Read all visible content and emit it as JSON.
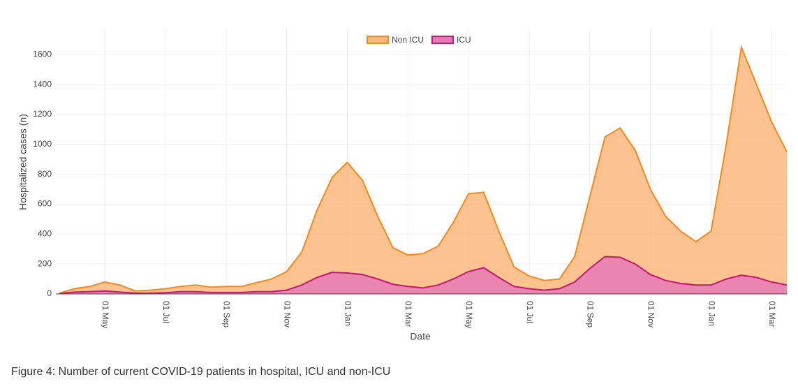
{
  "chart_data": {
    "type": "area",
    "xlabel": "Date",
    "ylabel": "Hospitalized cases (n)",
    "caption": "Figure 4: Number of current COVID-19 patients in hospital, ICU and non-ICU",
    "categories": [
      null,
      null,
      null,
      "01 May",
      null,
      null,
      null,
      "01 Jul",
      null,
      null,
      null,
      "01 Sep",
      null,
      null,
      null,
      "01 Nov",
      null,
      null,
      null,
      "01 Jan",
      null,
      null,
      null,
      "01 Mar",
      null,
      null,
      null,
      "01 May",
      null,
      null,
      null,
      "01 Jul",
      null,
      null,
      null,
      "01 Sep",
      null,
      null,
      null,
      "01 Nov",
      null,
      null,
      null,
      "01 Jan",
      null,
      null,
      null,
      "01 Mar",
      null
    ],
    "series": [
      {
        "name": "Non ICU",
        "color": "#f5891f",
        "fill": "#fbb87c",
        "values": [
          5,
          35,
          50,
          80,
          60,
          20,
          25,
          35,
          50,
          60,
          45,
          50,
          50,
          75,
          100,
          150,
          280,
          560,
          780,
          880,
          760,
          520,
          310,
          260,
          270,
          320,
          480,
          670,
          680,
          420,
          180,
          120,
          90,
          100,
          250,
          650,
          1050,
          1110,
          960,
          700,
          520,
          420,
          350,
          420,
          1000,
          1650,
          1400,
          1150,
          950
        ]
      },
      {
        "name": "ICU",
        "color": "#c2177a",
        "fill": "#e57ab5",
        "values": [
          2,
          12,
          15,
          20,
          12,
          5,
          5,
          8,
          15,
          15,
          10,
          10,
          10,
          15,
          15,
          25,
          60,
          110,
          145,
          140,
          130,
          100,
          65,
          50,
          40,
          60,
          100,
          150,
          175,
          110,
          50,
          35,
          25,
          35,
          80,
          170,
          250,
          245,
          200,
          130,
          90,
          70,
          60,
          60,
          100,
          125,
          110,
          80,
          60
        ]
      }
    ],
    "ylim": [
      0,
      1770
    ],
    "yticks": [
      0,
      200,
      400,
      600,
      800,
      1000,
      1200,
      1400,
      1600
    ],
    "grid": true,
    "legend": "top"
  }
}
